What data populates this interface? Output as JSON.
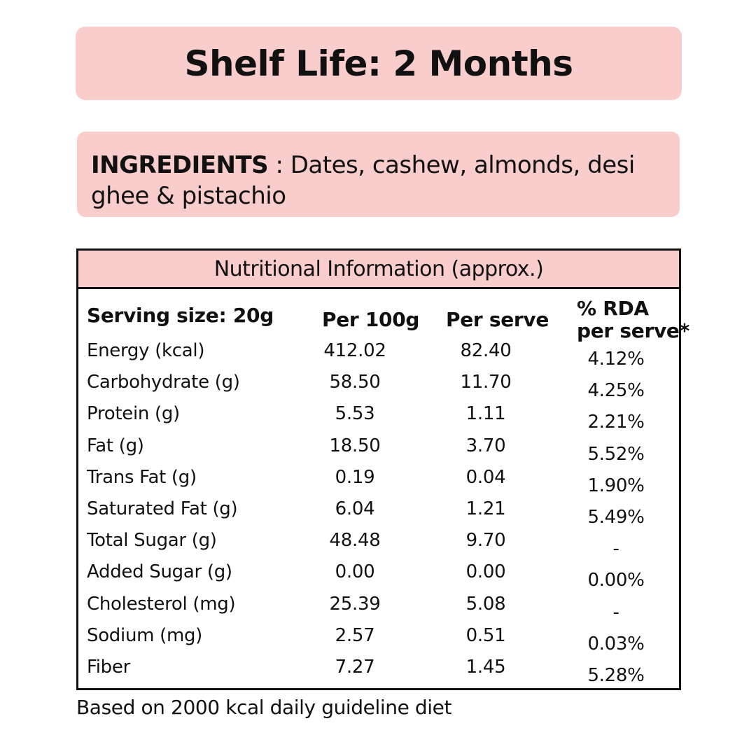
{
  "shelf_life": "Shelf Life: 2 Months",
  "ingredients": {
    "heading": "INGREDIENTS",
    "text": " : Dates, cashew, almonds, desi ghee & pistachio"
  },
  "nutrition": {
    "title": "Nutritional Information (approx.)",
    "serving_label": "Serving size: 20g",
    "col_per100": "Per 100g",
    "col_serve": "Per serve",
    "col_rda_line1": "% RDA",
    "col_rda_line2": "per serve*",
    "rows": [
      {
        "name": "Energy (kcal)",
        "per100": "412.02",
        "serve": "82.40",
        "rda": "4.12%"
      },
      {
        "name": "Carbohydrate (g)",
        "per100": "58.50",
        "serve": "11.70",
        "rda": "4.25%"
      },
      {
        "name": "Protein (g)",
        "per100": "5.53",
        "serve": "1.11",
        "rda": "2.21%"
      },
      {
        "name": "Fat (g)",
        "per100": "18.50",
        "serve": "3.70",
        "rda": "5.52%"
      },
      {
        "name": "Trans Fat (g)",
        "per100": "0.19",
        "serve": "0.04",
        "rda": "1.90%"
      },
      {
        "name": "Saturated Fat (g)",
        "per100": "6.04",
        "serve": "1.21",
        "rda": "5.49%"
      },
      {
        "name": "Total Sugar (g)",
        "per100": "48.48",
        "serve": "9.70",
        "rda": "-"
      },
      {
        "name": "Added Sugar (g)",
        "per100": "0.00",
        "serve": "0.00",
        "rda": "0.00%"
      },
      {
        "name": "Cholesterol (mg)",
        "per100": "25.39",
        "serve": "5.08",
        "rda": "-"
      },
      {
        "name": "Sodium (mg)",
        "per100": "2.57",
        "serve": "0.51",
        "rda": "0.03%"
      },
      {
        "name": "Fiber",
        "per100": "7.27",
        "serve": "1.45",
        "rda": "5.28%"
      }
    ]
  },
  "footnote": "Based on 2000 kcal daily guideline diet",
  "colors": {
    "panel_pink": "#f9cdcc",
    "text": "#111111"
  }
}
